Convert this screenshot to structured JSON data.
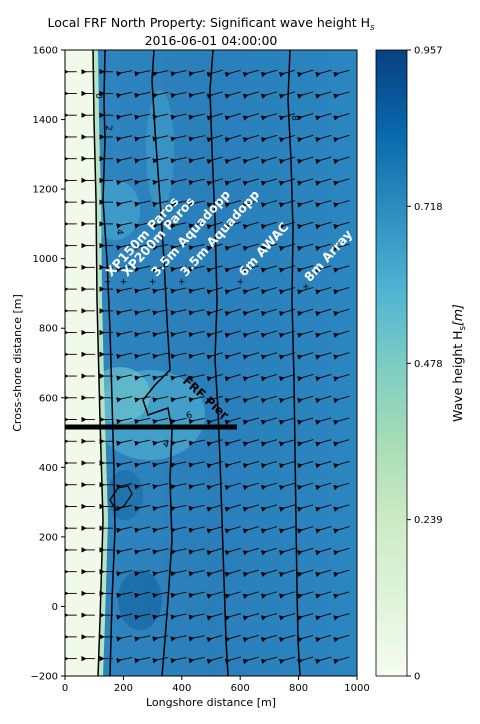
{
  "chart_data": {
    "type": "heatmap",
    "title_line1": "Local FRF North Property: Significant wave height H",
    "title_sub": "s",
    "title_line2": "2016-06-01 04:00:00",
    "xlabel": "Longshore distance [m]",
    "ylabel": "Cross-shore distance [m]",
    "xlim": [
      0,
      1000
    ],
    "ylim": [
      -200,
      1600
    ],
    "xticks": [
      "0",
      "200",
      "400",
      "600",
      "800",
      "1000"
    ],
    "yticks": [
      "−200",
      "0",
      "200",
      "400",
      "600",
      "800",
      "1000",
      "1200",
      "1400",
      "1600"
    ],
    "colorbar": {
      "label_main": "Wave height H",
      "label_sub": "s",
      "label_unit": "[m]",
      "ticks": [
        "0",
        "0.239",
        "0.478",
        "0.718",
        "0.957"
      ],
      "min": 0,
      "max": 0.957,
      "colors": [
        "#f7fcf0",
        "#e0f3db",
        "#ccebc5",
        "#a8ddb5",
        "#7bccc4",
        "#4eb3d3",
        "#2b8cbe",
        "#0868ac",
        "#084081"
      ]
    },
    "contour_labels": [
      "0",
      "2",
      "4",
      "8",
      "6",
      "4"
    ],
    "instruments": [
      {
        "name": "XP150m Paros",
        "x": 145,
        "y": 935
      },
      {
        "name": "XP200m Paros",
        "x": 200,
        "y": 935
      },
      {
        "name": "3.5m Aquadopp",
        "x": 300,
        "y": 935
      },
      {
        "name": "3.5m Aquadopp",
        "x": 400,
        "y": 935
      },
      {
        "name": "6m AWAC",
        "x": 600,
        "y": 935
      },
      {
        "name": "8m Array",
        "x": 825,
        "y": 920
      },
      {
        "name": "",
        "x": 0,
        "y": 0
      }
    ],
    "pier": {
      "name": "FRF Pier",
      "x0": 0,
      "x1": 590,
      "y": 515
    },
    "grid": false
  }
}
